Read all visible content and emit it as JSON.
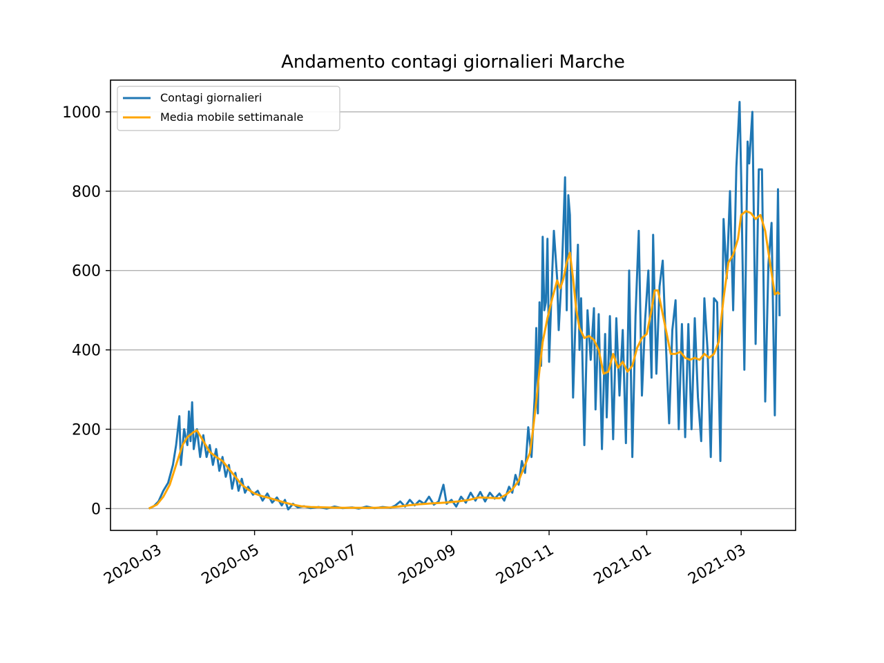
{
  "chart_data": {
    "type": "line",
    "title": "Andamento contagi giornalieri Marche",
    "xlabel": "",
    "ylabel": "",
    "x_range": [
      "2020-02-01",
      "2021-04-04"
    ],
    "ylim": [
      -55,
      1080
    ],
    "grid": "y",
    "legend_position": "top-left",
    "x_ticks": [
      {
        "date": "2020-03-01",
        "label": "2020-03"
      },
      {
        "date": "2020-05-01",
        "label": "2020-05"
      },
      {
        "date": "2020-07-01",
        "label": "2020-07"
      },
      {
        "date": "2020-09-01",
        "label": "2020-09"
      },
      {
        "date": "2020-11-01",
        "label": "2020-11"
      },
      {
        "date": "2021-01-01",
        "label": "2021-01"
      },
      {
        "date": "2021-03-01",
        "label": "2021-03"
      }
    ],
    "y_ticks": [
      0,
      200,
      400,
      600,
      800,
      1000
    ],
    "series": [
      {
        "name": "Contagi giornalieri",
        "color": "#1f77b4",
        "points": [
          [
            "2020-02-25",
            0
          ],
          [
            "2020-02-28",
            6
          ],
          [
            "2020-03-02",
            18
          ],
          [
            "2020-03-05",
            45
          ],
          [
            "2020-03-08",
            65
          ],
          [
            "2020-03-11",
            110
          ],
          [
            "2020-03-13",
            160
          ],
          [
            "2020-03-15",
            233
          ],
          [
            "2020-03-16",
            110
          ],
          [
            "2020-03-18",
            200
          ],
          [
            "2020-03-20",
            160
          ],
          [
            "2020-03-21",
            245
          ],
          [
            "2020-03-22",
            170
          ],
          [
            "2020-03-23",
            268
          ],
          [
            "2020-03-24",
            150
          ],
          [
            "2020-03-26",
            200
          ],
          [
            "2020-03-28",
            130
          ],
          [
            "2020-03-30",
            185
          ],
          [
            "2020-04-01",
            130
          ],
          [
            "2020-04-03",
            160
          ],
          [
            "2020-04-05",
            110
          ],
          [
            "2020-04-07",
            150
          ],
          [
            "2020-04-09",
            95
          ],
          [
            "2020-04-11",
            130
          ],
          [
            "2020-04-13",
            80
          ],
          [
            "2020-04-15",
            110
          ],
          [
            "2020-04-17",
            50
          ],
          [
            "2020-04-19",
            90
          ],
          [
            "2020-04-21",
            45
          ],
          [
            "2020-04-23",
            75
          ],
          [
            "2020-04-25",
            40
          ],
          [
            "2020-04-27",
            55
          ],
          [
            "2020-04-30",
            35
          ],
          [
            "2020-05-03",
            45
          ],
          [
            "2020-05-06",
            20
          ],
          [
            "2020-05-09",
            38
          ],
          [
            "2020-05-12",
            15
          ],
          [
            "2020-05-15",
            28
          ],
          [
            "2020-05-18",
            8
          ],
          [
            "2020-05-20",
            22
          ],
          [
            "2020-05-22",
            -2
          ],
          [
            "2020-05-25",
            12
          ],
          [
            "2020-05-28",
            3
          ],
          [
            "2020-06-01",
            6
          ],
          [
            "2020-06-05",
            1
          ],
          [
            "2020-06-10",
            4
          ],
          [
            "2020-06-15",
            0
          ],
          [
            "2020-06-20",
            5
          ],
          [
            "2020-06-25",
            1
          ],
          [
            "2020-07-01",
            3
          ],
          [
            "2020-07-05",
            0
          ],
          [
            "2020-07-10",
            5
          ],
          [
            "2020-07-15",
            1
          ],
          [
            "2020-07-20",
            4
          ],
          [
            "2020-07-25",
            2
          ],
          [
            "2020-07-28",
            8
          ],
          [
            "2020-07-31",
            18
          ],
          [
            "2020-08-03",
            5
          ],
          [
            "2020-08-06",
            22
          ],
          [
            "2020-08-09",
            8
          ],
          [
            "2020-08-12",
            20
          ],
          [
            "2020-08-15",
            12
          ],
          [
            "2020-08-18",
            30
          ],
          [
            "2020-08-21",
            10
          ],
          [
            "2020-08-24",
            18
          ],
          [
            "2020-08-27",
            60
          ],
          [
            "2020-08-29",
            12
          ],
          [
            "2020-09-01",
            22
          ],
          [
            "2020-09-04",
            5
          ],
          [
            "2020-09-07",
            30
          ],
          [
            "2020-09-10",
            15
          ],
          [
            "2020-09-13",
            40
          ],
          [
            "2020-09-16",
            20
          ],
          [
            "2020-09-19",
            42
          ],
          [
            "2020-09-22",
            18
          ],
          [
            "2020-09-25",
            40
          ],
          [
            "2020-09-28",
            25
          ],
          [
            "2020-10-01",
            38
          ],
          [
            "2020-10-04",
            20
          ],
          [
            "2020-10-07",
            55
          ],
          [
            "2020-10-09",
            40
          ],
          [
            "2020-10-11",
            85
          ],
          [
            "2020-10-13",
            60
          ],
          [
            "2020-10-15",
            120
          ],
          [
            "2020-10-17",
            90
          ],
          [
            "2020-10-19",
            205
          ],
          [
            "2020-10-21",
            130
          ],
          [
            "2020-10-23",
            280
          ],
          [
            "2020-10-24",
            455
          ],
          [
            "2020-10-25",
            240
          ],
          [
            "2020-10-26",
            520
          ],
          [
            "2020-10-27",
            360
          ],
          [
            "2020-10-28",
            685
          ],
          [
            "2020-10-29",
            500
          ],
          [
            "2020-10-30",
            520
          ],
          [
            "2020-10-31",
            680
          ],
          [
            "2020-11-01",
            370
          ],
          [
            "2020-11-03",
            600
          ],
          [
            "2020-11-04",
            700
          ],
          [
            "2020-11-06",
            580
          ],
          [
            "2020-11-07",
            450
          ],
          [
            "2020-11-09",
            600
          ],
          [
            "2020-11-11",
            835
          ],
          [
            "2020-11-12",
            500
          ],
          [
            "2020-11-13",
            790
          ],
          [
            "2020-11-14",
            740
          ],
          [
            "2020-11-16",
            280
          ],
          [
            "2020-11-18",
            545
          ],
          [
            "2020-11-19",
            665
          ],
          [
            "2020-11-20",
            400
          ],
          [
            "2020-11-21",
            530
          ],
          [
            "2020-11-23",
            160
          ],
          [
            "2020-11-25",
            500
          ],
          [
            "2020-11-27",
            375
          ],
          [
            "2020-11-29",
            505
          ],
          [
            "2020-11-30",
            250
          ],
          [
            "2020-12-02",
            490
          ],
          [
            "2020-12-04",
            150
          ],
          [
            "2020-12-06",
            440
          ],
          [
            "2020-12-07",
            230
          ],
          [
            "2020-12-09",
            485
          ],
          [
            "2020-12-11",
            175
          ],
          [
            "2020-12-13",
            480
          ],
          [
            "2020-12-15",
            285
          ],
          [
            "2020-12-17",
            450
          ],
          [
            "2020-12-19",
            165
          ],
          [
            "2020-12-21",
            600
          ],
          [
            "2020-12-23",
            130
          ],
          [
            "2020-12-25",
            485
          ],
          [
            "2020-12-27",
            700
          ],
          [
            "2020-12-29",
            285
          ],
          [
            "2020-12-31",
            475
          ],
          [
            "2021-01-02",
            600
          ],
          [
            "2021-01-04",
            330
          ],
          [
            "2021-01-05",
            690
          ],
          [
            "2021-01-07",
            340
          ],
          [
            "2021-01-09",
            560
          ],
          [
            "2021-01-11",
            625
          ],
          [
            "2021-01-13",
            410
          ],
          [
            "2021-01-15",
            215
          ],
          [
            "2021-01-17",
            450
          ],
          [
            "2021-01-19",
            525
          ],
          [
            "2021-01-21",
            200
          ],
          [
            "2021-01-23",
            465
          ],
          [
            "2021-01-25",
            180
          ],
          [
            "2021-01-27",
            465
          ],
          [
            "2021-01-29",
            200
          ],
          [
            "2021-01-31",
            480
          ],
          [
            "2021-02-02",
            280
          ],
          [
            "2021-02-04",
            170
          ],
          [
            "2021-02-06",
            530
          ],
          [
            "2021-02-08",
            400
          ],
          [
            "2021-02-10",
            130
          ],
          [
            "2021-02-12",
            530
          ],
          [
            "2021-02-14",
            520
          ],
          [
            "2021-02-16",
            120
          ],
          [
            "2021-02-18",
            730
          ],
          [
            "2021-02-20",
            580
          ],
          [
            "2021-02-22",
            800
          ],
          [
            "2021-02-24",
            500
          ],
          [
            "2021-02-26",
            860
          ],
          [
            "2021-02-28",
            1025
          ],
          [
            "2021-03-01",
            835
          ],
          [
            "2021-03-03",
            350
          ],
          [
            "2021-03-05",
            925
          ],
          [
            "2021-03-06",
            870
          ],
          [
            "2021-03-08",
            1000
          ],
          [
            "2021-03-10",
            415
          ],
          [
            "2021-03-12",
            855
          ],
          [
            "2021-03-14",
            855
          ],
          [
            "2021-03-16",
            270
          ],
          [
            "2021-03-18",
            615
          ],
          [
            "2021-03-20",
            720
          ],
          [
            "2021-03-22",
            235
          ],
          [
            "2021-03-24",
            805
          ],
          [
            "2021-03-25",
            485
          ]
        ]
      },
      {
        "name": "Media mobile settimanale",
        "color": "#ffa500",
        "points": [
          [
            "2020-02-25",
            0
          ],
          [
            "2020-03-01",
            10
          ],
          [
            "2020-03-05",
            30
          ],
          [
            "2020-03-09",
            60
          ],
          [
            "2020-03-13",
            110
          ],
          [
            "2020-03-17",
            160
          ],
          [
            "2020-03-20",
            180
          ],
          [
            "2020-03-24",
            193
          ],
          [
            "2020-03-26",
            197
          ],
          [
            "2020-03-30",
            170
          ],
          [
            "2020-04-03",
            143
          ],
          [
            "2020-04-07",
            130
          ],
          [
            "2020-04-11",
            120
          ],
          [
            "2020-04-15",
            100
          ],
          [
            "2020-04-19",
            80
          ],
          [
            "2020-04-23",
            60
          ],
          [
            "2020-04-27",
            48
          ],
          [
            "2020-05-01",
            38
          ],
          [
            "2020-05-05",
            32
          ],
          [
            "2020-05-10",
            27
          ],
          [
            "2020-05-15",
            21
          ],
          [
            "2020-05-20",
            15
          ],
          [
            "2020-05-25",
            10
          ],
          [
            "2020-05-30",
            6
          ],
          [
            "2020-06-05",
            4
          ],
          [
            "2020-06-15",
            3
          ],
          [
            "2020-06-25",
            2
          ],
          [
            "2020-07-05",
            2
          ],
          [
            "2020-07-15",
            2
          ],
          [
            "2020-07-25",
            3
          ],
          [
            "2020-07-30",
            5
          ],
          [
            "2020-08-05",
            8
          ],
          [
            "2020-08-12",
            11
          ],
          [
            "2020-08-20",
            13
          ],
          [
            "2020-08-28",
            15
          ],
          [
            "2020-09-05",
            18
          ],
          [
            "2020-09-12",
            22
          ],
          [
            "2020-09-18",
            28
          ],
          [
            "2020-09-25",
            27
          ],
          [
            "2020-10-01",
            26
          ],
          [
            "2020-10-05",
            35
          ],
          [
            "2020-10-09",
            48
          ],
          [
            "2020-10-13",
            70
          ],
          [
            "2020-10-17",
            110
          ],
          [
            "2020-10-20",
            140
          ],
          [
            "2020-10-22",
            200
          ],
          [
            "2020-10-24",
            270
          ],
          [
            "2020-10-26",
            350
          ],
          [
            "2020-10-28",
            420
          ],
          [
            "2020-10-31",
            480
          ],
          [
            "2020-11-03",
            530
          ],
          [
            "2020-11-06",
            575
          ],
          [
            "2020-11-08",
            555
          ],
          [
            "2020-11-10",
            580
          ],
          [
            "2020-11-12",
            620
          ],
          [
            "2020-11-14",
            645
          ],
          [
            "2020-11-16",
            580
          ],
          [
            "2020-11-18",
            500
          ],
          [
            "2020-11-20",
            455
          ],
          [
            "2020-11-23",
            430
          ],
          [
            "2020-11-26",
            435
          ],
          [
            "2020-11-29",
            425
          ],
          [
            "2020-12-02",
            400
          ],
          [
            "2020-12-05",
            340
          ],
          [
            "2020-12-08",
            345
          ],
          [
            "2020-12-11",
            390
          ],
          [
            "2020-12-14",
            355
          ],
          [
            "2020-12-17",
            370
          ],
          [
            "2020-12-20",
            345
          ],
          [
            "2020-12-23",
            360
          ],
          [
            "2020-12-26",
            405
          ],
          [
            "2020-12-29",
            430
          ],
          [
            "2021-01-01",
            440
          ],
          [
            "2021-01-04",
            500
          ],
          [
            "2021-01-06",
            550
          ],
          [
            "2021-01-08",
            550
          ],
          [
            "2021-01-10",
            510
          ],
          [
            "2021-01-13",
            450
          ],
          [
            "2021-01-16",
            390
          ],
          [
            "2021-01-19",
            390
          ],
          [
            "2021-01-22",
            395
          ],
          [
            "2021-01-25",
            380
          ],
          [
            "2021-01-28",
            375
          ],
          [
            "2021-01-31",
            380
          ],
          [
            "2021-02-03",
            375
          ],
          [
            "2021-02-06",
            390
          ],
          [
            "2021-02-09",
            380
          ],
          [
            "2021-02-12",
            390
          ],
          [
            "2021-02-15",
            420
          ],
          [
            "2021-02-18",
            530
          ],
          [
            "2021-02-21",
            620
          ],
          [
            "2021-02-24",
            640
          ],
          [
            "2021-02-27",
            680
          ],
          [
            "2021-03-01",
            740
          ],
          [
            "2021-03-04",
            750
          ],
          [
            "2021-03-07",
            745
          ],
          [
            "2021-03-10",
            730
          ],
          [
            "2021-03-13",
            740
          ],
          [
            "2021-03-16",
            700
          ],
          [
            "2021-03-19",
            620
          ],
          [
            "2021-03-22",
            540
          ],
          [
            "2021-03-24",
            545
          ],
          [
            "2021-03-25",
            540
          ]
        ]
      }
    ]
  }
}
